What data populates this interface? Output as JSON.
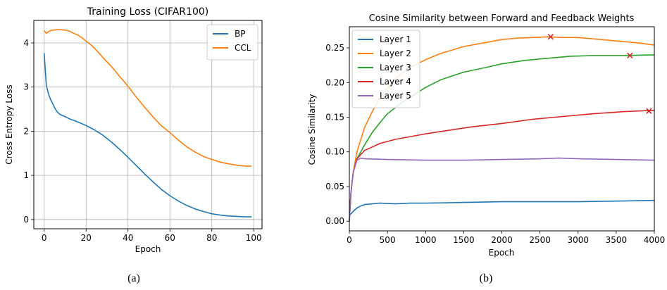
{
  "figure": {
    "captions": [
      "(a)",
      "(b)"
    ]
  },
  "chart_data": [
    {
      "type": "line",
      "title": "Training Loss (CIFAR100)",
      "xlabel": "Epoch",
      "ylabel": "Cross Entropy Loss",
      "xlim": [
        -4.95,
        103.95
      ],
      "ylim": [
        -0.21,
        4.51
      ],
      "xticks": [
        0,
        20,
        40,
        60,
        80,
        100
      ],
      "yticks": [
        0,
        1,
        2,
        3,
        4
      ],
      "grid": true,
      "legend": "top-right",
      "series": [
        {
          "name": "BP",
          "color": "#1f77b4",
          "points": [
            [
              0,
              3.77
            ],
            [
              1,
              3.05
            ],
            [
              2,
              2.85
            ],
            [
              3,
              2.72
            ],
            [
              4,
              2.63
            ],
            [
              5,
              2.53
            ],
            [
              6,
              2.45
            ],
            [
              7,
              2.4
            ],
            [
              8,
              2.37
            ],
            [
              10,
              2.33
            ],
            [
              12,
              2.28
            ],
            [
              15,
              2.23
            ],
            [
              18,
              2.17
            ],
            [
              20,
              2.13
            ],
            [
              24,
              2.03
            ],
            [
              28,
              1.91
            ],
            [
              32,
              1.76
            ],
            [
              36,
              1.59
            ],
            [
              40,
              1.41
            ],
            [
              44,
              1.22
            ],
            [
              48,
              1.03
            ],
            [
              52,
              0.85
            ],
            [
              56,
              0.68
            ],
            [
              60,
              0.54
            ],
            [
              64,
              0.42
            ],
            [
              68,
              0.32
            ],
            [
              72,
              0.24
            ],
            [
              76,
              0.18
            ],
            [
              80,
              0.13
            ],
            [
              84,
              0.1
            ],
            [
              88,
              0.08
            ],
            [
              92,
              0.07
            ],
            [
              96,
              0.06
            ],
            [
              99,
              0.06
            ]
          ]
        },
        {
          "name": "CCL",
          "color": "#ff7f0e",
          "points": [
            [
              0,
              4.28
            ],
            [
              1,
              4.22
            ],
            [
              2,
              4.25
            ],
            [
              3,
              4.28
            ],
            [
              4,
              4.29
            ],
            [
              6,
              4.3
            ],
            [
              8,
              4.3
            ],
            [
              10,
              4.29
            ],
            [
              12,
              4.27
            ],
            [
              14,
              4.22
            ],
            [
              16,
              4.18
            ],
            [
              18,
              4.12
            ],
            [
              20,
              4.04
            ],
            [
              22,
              3.97
            ],
            [
              24,
              3.88
            ],
            [
              26,
              3.78
            ],
            [
              28,
              3.67
            ],
            [
              30,
              3.57
            ],
            [
              32,
              3.47
            ],
            [
              34,
              3.36
            ],
            [
              36,
              3.24
            ],
            [
              38,
              3.13
            ],
            [
              40,
              3.02
            ],
            [
              44,
              2.77
            ],
            [
              48,
              2.54
            ],
            [
              52,
              2.32
            ],
            [
              56,
              2.12
            ],
            [
              60,
              1.97
            ],
            [
              64,
              1.8
            ],
            [
              68,
              1.65
            ],
            [
              72,
              1.53
            ],
            [
              76,
              1.43
            ],
            [
              80,
              1.36
            ],
            [
              84,
              1.3
            ],
            [
              88,
              1.26
            ],
            [
              92,
              1.23
            ],
            [
              96,
              1.21
            ],
            [
              99,
              1.21
            ]
          ]
        }
      ]
    },
    {
      "type": "line",
      "title": "Cosine Similarity between Forward and Feedback Weights",
      "xlabel": "Epoch",
      "ylabel": "Cosine Similarity",
      "xlim": [
        0,
        4000
      ],
      "ylim": [
        -0.014,
        0.2805
      ],
      "xticks": [
        0,
        500,
        1000,
        1500,
        2000,
        2500,
        3000,
        3500,
        4000
      ],
      "yticks": [
        0.0,
        0.05,
        0.1,
        0.15,
        0.2,
        0.25
      ],
      "ytick_labels": [
        "0.00",
        "0.05",
        "0.10",
        "0.15",
        "0.20",
        "0.25"
      ],
      "grid": false,
      "legend": "top-left",
      "series": [
        {
          "name": "Layer 1",
          "color": "#1f77b4",
          "points": [
            [
              0,
              0.008
            ],
            [
              50,
              0.014
            ],
            [
              100,
              0.019
            ],
            [
              150,
              0.022
            ],
            [
              200,
              0.024
            ],
            [
              300,
              0.025
            ],
            [
              400,
              0.026
            ],
            [
              600,
              0.025
            ],
            [
              800,
              0.026
            ],
            [
              1000,
              0.026
            ],
            [
              1500,
              0.027
            ],
            [
              2000,
              0.028
            ],
            [
              2500,
              0.028
            ],
            [
              3000,
              0.028
            ],
            [
              3500,
              0.029
            ],
            [
              4000,
              0.03
            ]
          ]
        },
        {
          "name": "Layer 2",
          "color": "#ff7f0e",
          "points": [
            [
              0,
              0.0
            ],
            [
              20,
              0.04
            ],
            [
              50,
              0.07
            ],
            [
              100,
              0.1
            ],
            [
              200,
              0.135
            ],
            [
              300,
              0.158
            ],
            [
              400,
              0.178
            ],
            [
              500,
              0.192
            ],
            [
              600,
              0.205
            ],
            [
              800,
              0.222
            ],
            [
              1000,
              0.233
            ],
            [
              1200,
              0.242
            ],
            [
              1500,
              0.252
            ],
            [
              1800,
              0.258
            ],
            [
              2000,
              0.262
            ],
            [
              2200,
              0.264
            ],
            [
              2400,
              0.265
            ],
            [
              2600,
              0.266
            ],
            [
              2800,
              0.265
            ],
            [
              3000,
              0.265
            ],
            [
              3200,
              0.263
            ],
            [
              3400,
              0.261
            ],
            [
              3600,
              0.259
            ],
            [
              3800,
              0.257
            ],
            [
              4000,
              0.254
            ]
          ]
        },
        {
          "name": "Layer 3",
          "color": "#2ca02c",
          "points": [
            [
              0,
              0.0
            ],
            [
              20,
              0.04
            ],
            [
              50,
              0.07
            ],
            [
              100,
              0.09
            ],
            [
              200,
              0.11
            ],
            [
              300,
              0.128
            ],
            [
              400,
              0.142
            ],
            [
              500,
              0.155
            ],
            [
              700,
              0.172
            ],
            [
              1000,
              0.193
            ],
            [
              1200,
              0.204
            ],
            [
              1500,
              0.215
            ],
            [
              1800,
              0.222
            ],
            [
              2000,
              0.227
            ],
            [
              2300,
              0.232
            ],
            [
              2600,
              0.235
            ],
            [
              2900,
              0.238
            ],
            [
              3200,
              0.239
            ],
            [
              3600,
              0.239
            ],
            [
              4000,
              0.24
            ]
          ]
        },
        {
          "name": "Layer 4",
          "color": "#d62728",
          "points": [
            [
              0,
              0.0
            ],
            [
              20,
              0.04
            ],
            [
              50,
              0.07
            ],
            [
              100,
              0.09
            ],
            [
              200,
              0.102
            ],
            [
              400,
              0.112
            ],
            [
              600,
              0.118
            ],
            [
              800,
              0.122
            ],
            [
              1000,
              0.126
            ],
            [
              1300,
              0.131
            ],
            [
              1600,
              0.136
            ],
            [
              2000,
              0.141
            ],
            [
              2400,
              0.147
            ],
            [
              2800,
              0.151
            ],
            [
              3200,
              0.155
            ],
            [
              3600,
              0.158
            ],
            [
              4000,
              0.16
            ]
          ]
        },
        {
          "name": "Layer 5",
          "color": "#9467bd",
          "points": [
            [
              0,
              0.0
            ],
            [
              20,
              0.04
            ],
            [
              50,
              0.07
            ],
            [
              100,
              0.088
            ],
            [
              150,
              0.091
            ],
            [
              200,
              0.09
            ],
            [
              500,
              0.089
            ],
            [
              1000,
              0.088
            ],
            [
              1500,
              0.088
            ],
            [
              2000,
              0.089
            ],
            [
              2500,
              0.09
            ],
            [
              2750,
              0.091
            ],
            [
              3000,
              0.09
            ],
            [
              3500,
              0.089
            ],
            [
              4000,
              0.088
            ]
          ]
        }
      ],
      "markers": [
        {
          "series": "Layer 2",
          "x": 2640,
          "y": 0.266,
          "symbol": "x",
          "color": "#d62728"
        },
        {
          "series": "Layer 3",
          "x": 3680,
          "y": 0.239,
          "symbol": "x",
          "color": "#d62728"
        },
        {
          "series": "Layer 4",
          "x": 3930,
          "y": 0.159,
          "symbol": "x",
          "color": "#d62728"
        }
      ]
    }
  ]
}
